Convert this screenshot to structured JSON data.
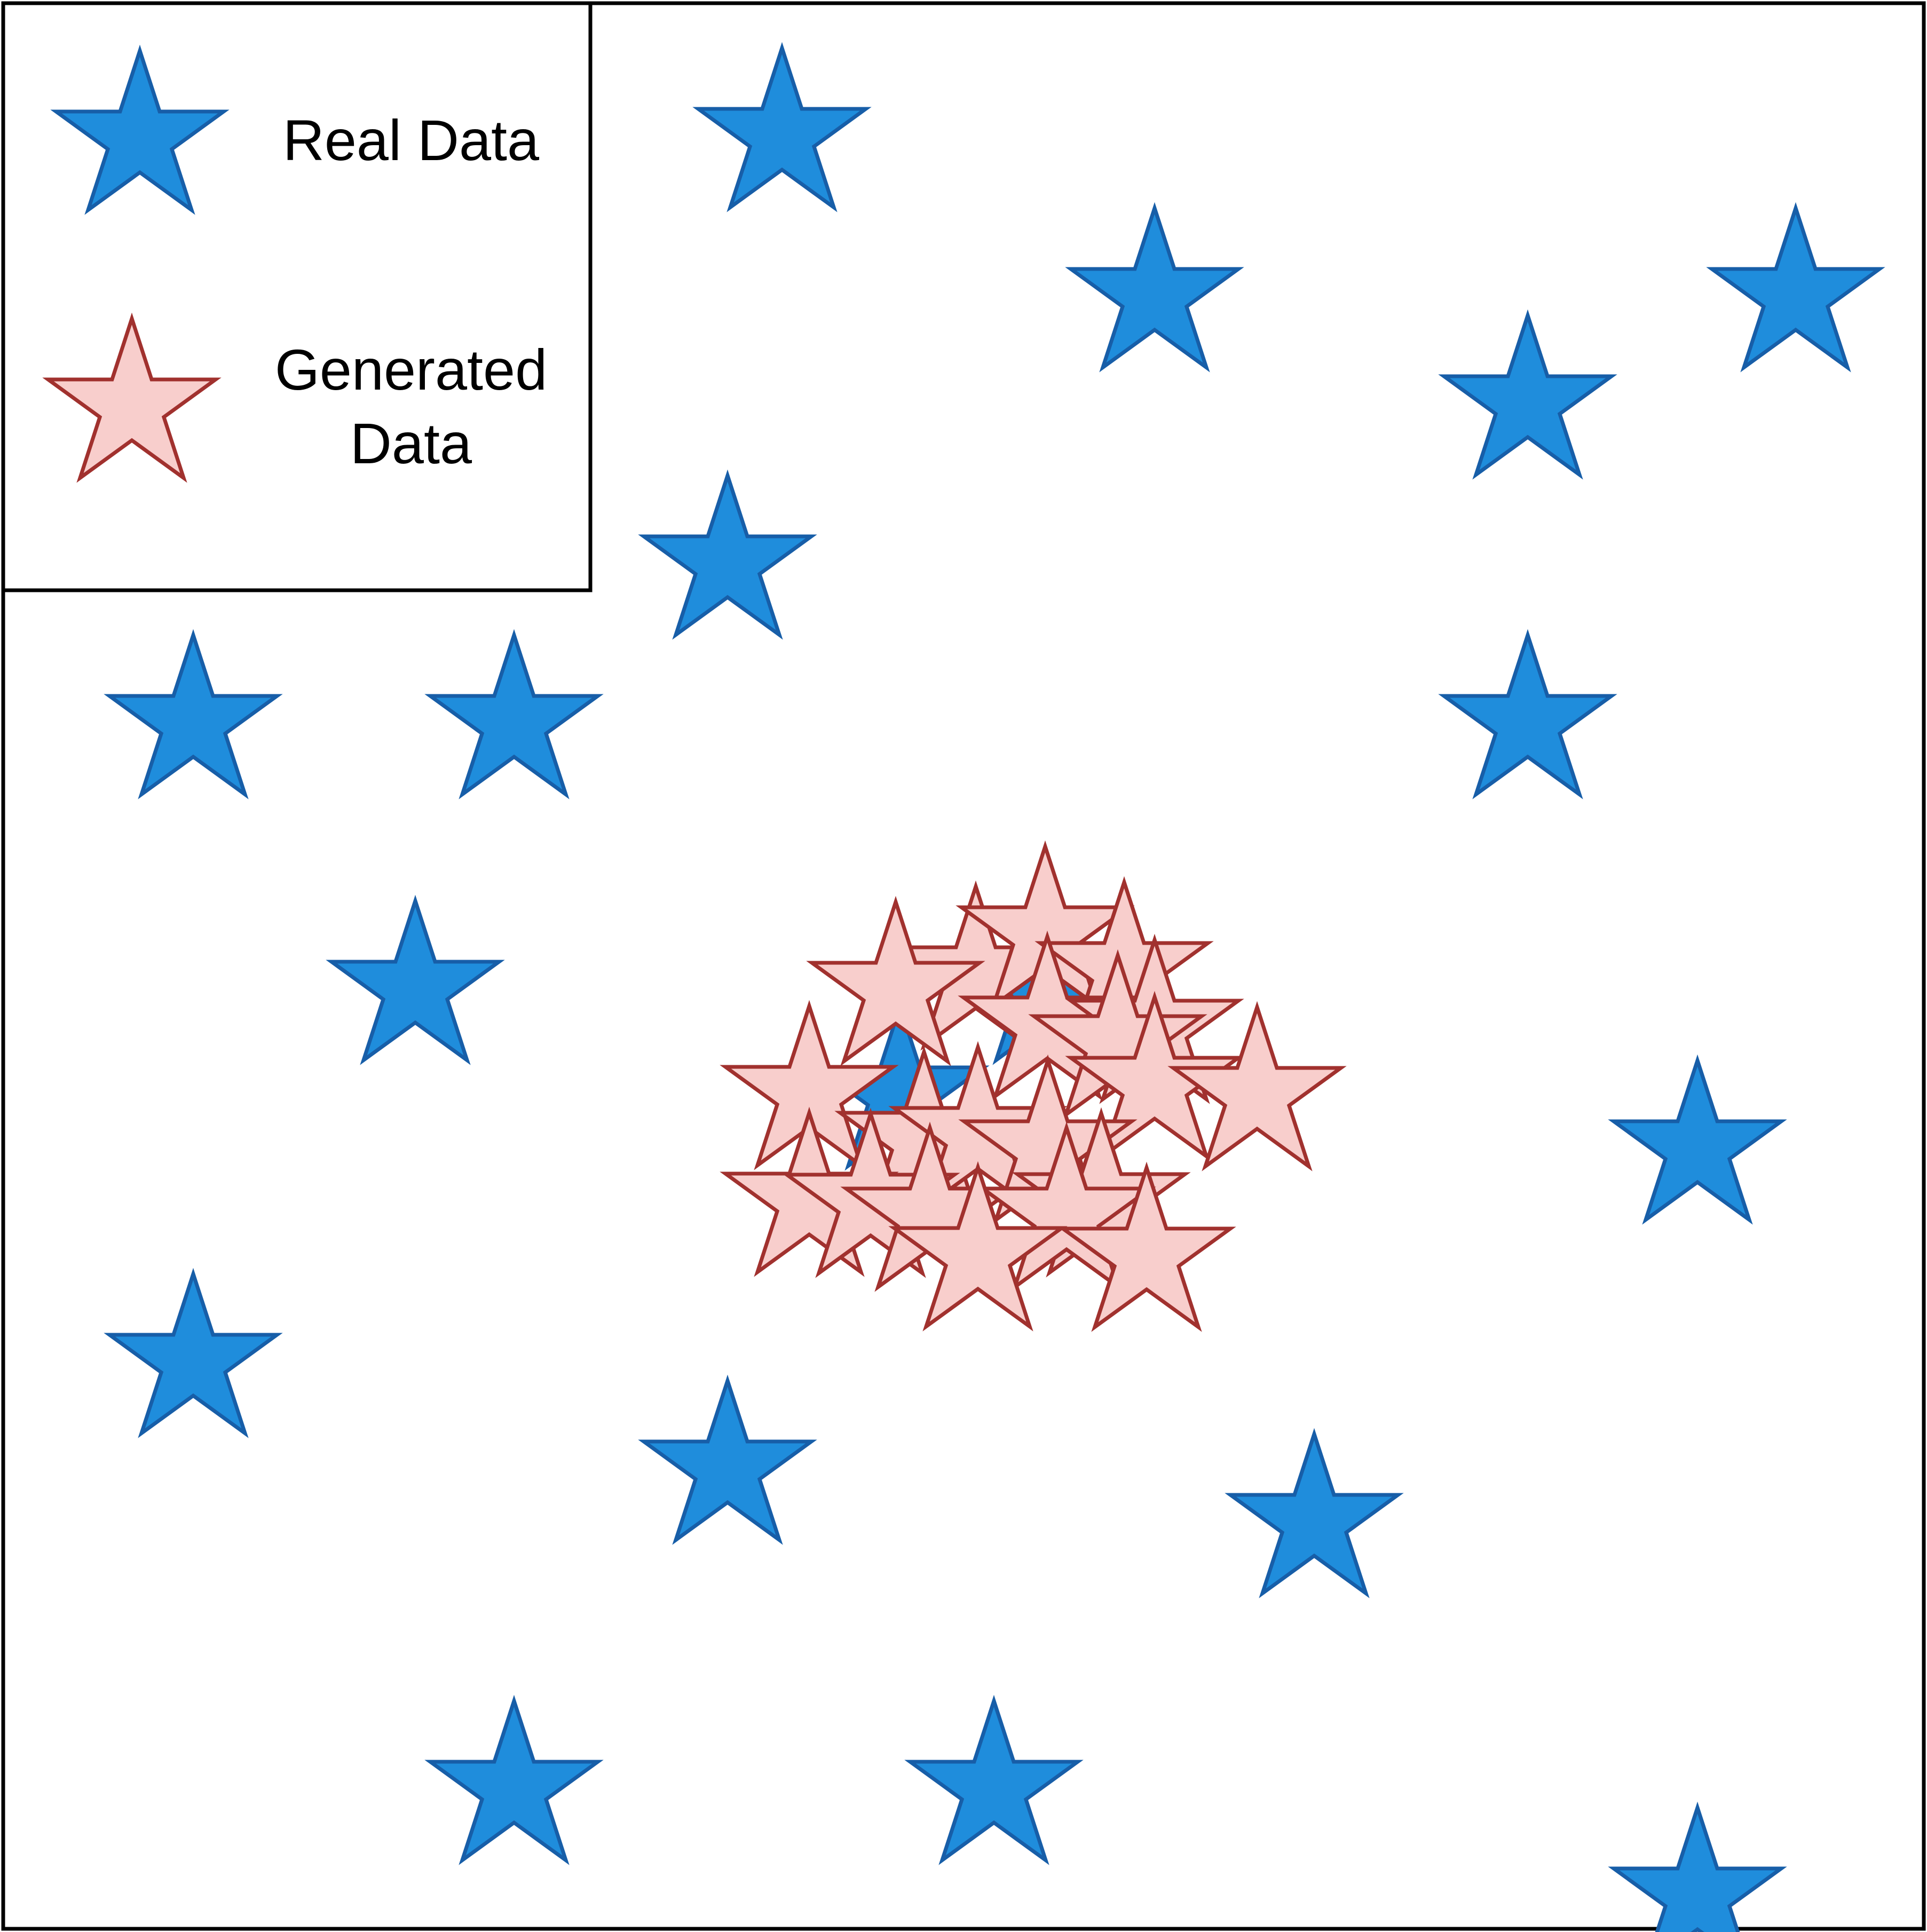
{
  "legend": {
    "real_label": "Real Data",
    "generated_label_line1": "Generated",
    "generated_label_line2": "Data"
  },
  "colors": {
    "real_fill": "#1f8ddc",
    "real_stroke": "#175ea8",
    "generated_fill": "#f8cecc",
    "generated_stroke": "#a1312e",
    "frame": "#000000"
  },
  "icons": {
    "real_marker": "filled-star-icon",
    "generated_marker": "outline-star-icon"
  }
}
